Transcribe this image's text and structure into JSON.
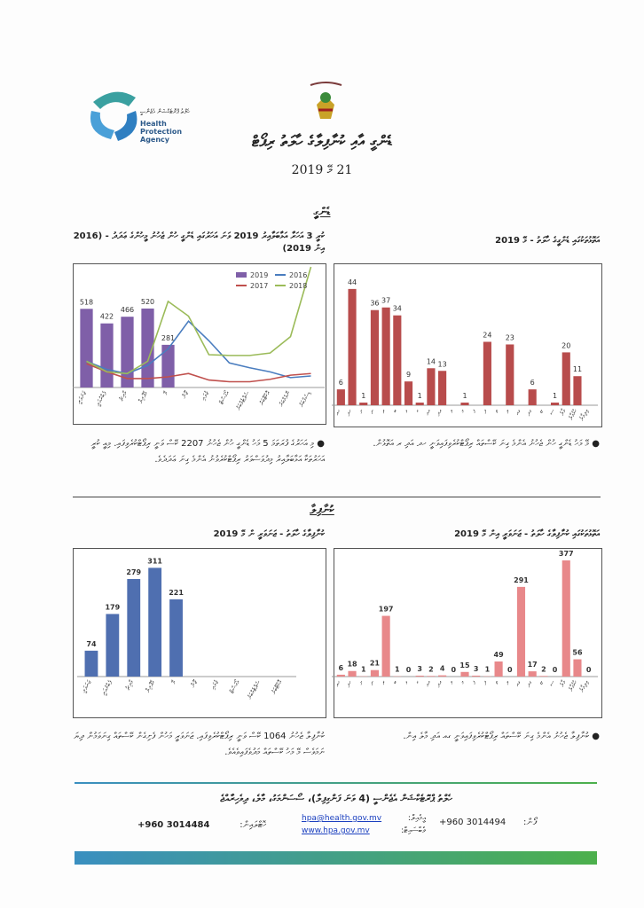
{
  "header": {
    "agency_dv": "ހެލްތު ޕްރޮޓެކްޝަން އެޖެންސީ",
    "agency_en": "Health Protection Agency",
    "title": "ޑެންގީ އާއި ކުނާފިލާގެ ހާލަތު ރިޕޯޓް",
    "date": "21 މޭ 2019"
  },
  "sections": [
    {
      "heading": "ޑެންގީ",
      "bullets": [
        "މޭ މަހު ޑެންގީ ހުން ޖެހުނު އެންމެ ގިނަ ކޭސްތައް ރިޕޯޓްކުރެވިފައިވަނީ ހދ އަދި ރ އަތޮޅުން.",
        "މި އަހަރުގެ ފުރަތަމަ 5 މަހު ޑެންގީ ހުން ޖެހުނު 2207 ކޭސް ވަނީ ރިޕޯޓްކުރެވިފައި. މިއީ ކުރީ އަހަރުތަކާ އަޅާބަލާއިރު މިދުވަސްވަރު ރިޕޯޓްކުރެވުނު އެންމެ ގިނަ ޢަދަދެވެ."
      ]
    },
    {
      "heading": "ކުނާފިލާ",
      "bullets": [
        "ކުނާފިލާ ޖެހުނު އެންމެ ގިނަ ކޭސްތައް ރިޕޯޓްކުރެވިފައިވަނީ ގއ އަދި މާލެ އިން.",
        "ކުނާފިލާ ޖެހުނު 1064 ކޭސް ވަނީ ރިޕޯޓްކުރެވިފައި. ޖަނަވަރީ މަހުން ފެށިގެން ކޭސްތައް ގިނަވަމުން ދިޔަ ނަމަވެސް މޭ މަހު ކޭސްތައް މަދުވެފައިވެއެވެ."
      ]
    }
  ],
  "chart_data": [
    {
      "type": "bar",
      "title": "ކުރީ 3 އަހަރާ އަޅާބަލާއިރު 2019 ވަނަ އަހަރުގައި ޑެންގީ ހުން ޖެހުނު މީހުންގެ ޢަދަދު - (2016 އިން 2019)",
      "categories": [
        "ޖަނަވަރީ",
        "ފެބްރުއަރީ",
        "މާރިޗު",
        "އޭޕްރިލް",
        "މޭ",
        "ޖޫން",
        "ޖުލައި",
        "އޯގަސްޓް",
        "ސެޕްޓެމްބަރު",
        "އޮކްޓޫބަރު",
        "ނޮވެމްބަރު",
        "ޑިސެމްބަރު"
      ],
      "ylim": [
        0,
        800
      ],
      "series": [
        {
          "name": "2019",
          "type": "bar",
          "color": "#7f5fa8",
          "values": [
            518,
            422,
            466,
            520,
            281,
            null,
            null,
            null,
            null,
            null,
            null,
            null
          ]
        },
        {
          "name": "2016",
          "type": "line",
          "color": "#4a7dbf",
          "values": [
            173,
            119,
            92,
            146,
            254,
            437,
            308,
            162,
            130,
            103,
            65,
            76
          ]
        },
        {
          "name": "2017",
          "type": "line",
          "color": "#c0504d",
          "values": [
            157,
            103,
            59,
            59,
            70,
            92,
            49,
            38,
            38,
            54,
            81,
            92
          ]
        },
        {
          "name": "2018",
          "type": "line",
          "color": "#9bbb59",
          "values": [
            173,
            103,
            92,
            173,
            567,
            470,
            216,
            211,
            211,
            227,
            335,
            794
          ]
        }
      ]
    },
    {
      "type": "bar",
      "title": "އަތޮޅުތަކުގައި ޑެންގީގެ ހާލަތު - މޭ 2019",
      "categories": [
        "ހއ",
        "ހދ",
        "ށ",
        "ނ",
        "ރ",
        "ބ",
        "ޅ",
        "ކ",
        "އއ",
        "އދ",
        "ވ",
        "މ",
        "ފ",
        "ދ",
        "ތ",
        "ލ",
        "ގއ",
        "ގދ",
        "ޏ",
        "ސ",
        "މާލެ",
        "ހުޅުމާލެ",
        "ވިލިމާލެ"
      ],
      "ylim": [
        0,
        50
      ],
      "series": [
        {
          "name": "2019",
          "type": "bar",
          "color": "#b84c4c",
          "values": [
            6,
            44,
            1,
            36,
            37,
            34,
            9,
            1,
            14,
            13,
            null,
            1,
            null,
            24,
            null,
            23,
            null,
            6,
            null,
            1,
            20,
            11,
            null
          ]
        }
      ]
    },
    {
      "type": "bar",
      "title": "ކުނާފިލާގެ ހާލަތު - ޖަނަވަރީ ން މޭ 2019",
      "categories": [
        "ޖަނަވަރީ",
        "ފެބްރުއަރީ",
        "މާރިޗު",
        "އޭޕްރިލް",
        "މޭ",
        "ޖޫން",
        "ޖުލައި",
        "އޯގަސްޓް",
        "ސެޕްޓެމްބަރު",
        "އޮކްޓޫބަރު"
      ],
      "ylim": [
        0,
        350
      ],
      "series": [
        {
          "name": "2019",
          "type": "bar",
          "color": "#4f6fb0",
          "values": [
            74,
            179,
            279,
            311,
            221,
            null,
            null,
            null,
            null,
            null
          ]
        }
      ]
    },
    {
      "type": "bar",
      "title": "އަތޮޅުތަކުގައި ކުނާފިލާގެ ހާލަތު - ޖަނަވަރީ އިން މޭ 2019",
      "categories": [
        "ހއ",
        "ހދ",
        "ށ",
        "ނ",
        "ރ",
        "ބ",
        "ޅ",
        "ކ",
        "އއ",
        "އދ",
        "ވ",
        "މ",
        "ފ",
        "ދ",
        "ތ",
        "ލ",
        "ގއ",
        "ގދ",
        "ޏ",
        "ސ",
        "މާލެ",
        "ހުޅުމާލެ",
        "ވިލިމާލެ"
      ],
      "ylim": [
        0,
        400
      ],
      "series": [
        {
          "name": "2019",
          "type": "bar",
          "color": "#e8888a",
          "values": [
            6,
            18,
            1,
            21,
            197,
            1,
            0,
            3,
            2,
            4,
            0,
            15,
            3,
            1,
            49,
            0,
            291,
            17,
            2,
            0,
            377,
            56,
            0
          ]
        }
      ]
    }
  ],
  "footer": {
    "address": "ހެލްތު ޕްރޮޓެކްޝަން އެޖެންސީ (4 ވަނަ ފަންގިފިލާ)، ސޯސަންމަގު، މާލެ، ދިވެހިރާއްޖެ",
    "phone_label": "ފޯން:",
    "phone": "+960 3014494",
    "email_label": "އީމެއިލް:",
    "email": "hpa@health.gov.mv",
    "web_label": "ވެބްސައިޓް:",
    "web": "www.hpa.gov.mv",
    "hotline_label": "ހޮޓްލައިން:",
    "hotline": "+960 3014484"
  }
}
